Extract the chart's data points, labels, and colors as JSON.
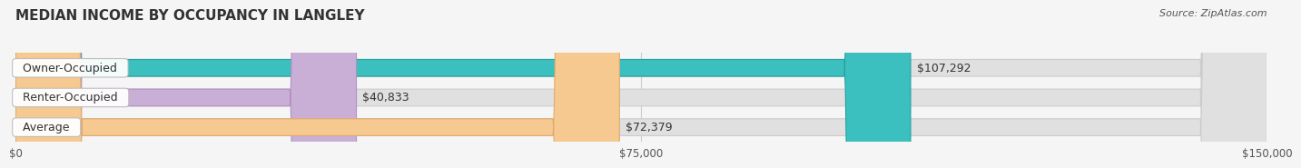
{
  "title": "MEDIAN INCOME BY OCCUPANCY IN LANGLEY",
  "source": "Source: ZipAtlas.com",
  "categories": [
    "Owner-Occupied",
    "Renter-Occupied",
    "Average"
  ],
  "values": [
    107292,
    40833,
    72379
  ],
  "labels": [
    "$107,292",
    "$40,833",
    "$72,379"
  ],
  "bar_colors": [
    "#3bbfbf",
    "#c9aed6",
    "#f5c990"
  ],
  "bar_edge_colors": [
    "#2aa0a0",
    "#b090c0",
    "#e0aa70"
  ],
  "xlim": [
    0,
    150000
  ],
  "xtick_values": [
    0,
    75000,
    150000
  ],
  "xtick_labels": [
    "$0",
    "$75,000",
    "$150,000"
  ],
  "title_fontsize": 11,
  "source_fontsize": 8,
  "label_fontsize": 9,
  "background_color": "#f5f5f5",
  "bar_background_color": "#e8e8e8",
  "bar_height": 0.55
}
